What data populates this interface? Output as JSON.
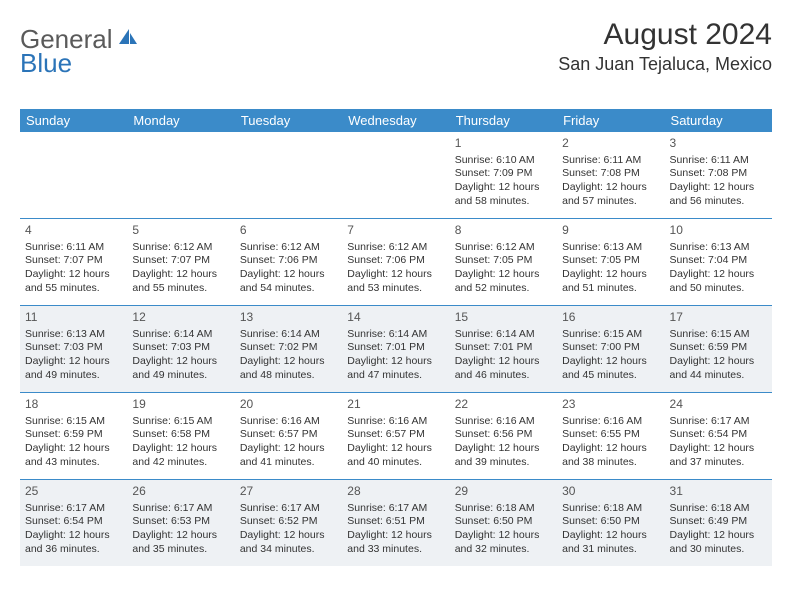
{
  "logo": {
    "text1": "General",
    "text2": "Blue"
  },
  "title": "August 2024",
  "location": "San Juan Tejaluca, Mexico",
  "colors": {
    "header_bg": "#3b8bc9",
    "header_text": "#ffffff",
    "border": "#3b8bc9",
    "shaded_bg": "#eef1f4",
    "text": "#333333",
    "logo_gray": "#5a5a5a",
    "logo_blue": "#2b74b8"
  },
  "day_headers": [
    "Sunday",
    "Monday",
    "Tuesday",
    "Wednesday",
    "Thursday",
    "Friday",
    "Saturday"
  ],
  "weeks": [
    [
      {
        "n": "",
        "sr": "",
        "ss": "",
        "dl": ""
      },
      {
        "n": "",
        "sr": "",
        "ss": "",
        "dl": ""
      },
      {
        "n": "",
        "sr": "",
        "ss": "",
        "dl": ""
      },
      {
        "n": "",
        "sr": "",
        "ss": "",
        "dl": ""
      },
      {
        "n": "1",
        "sr": "Sunrise: 6:10 AM",
        "ss": "Sunset: 7:09 PM",
        "dl": "Daylight: 12 hours and 58 minutes."
      },
      {
        "n": "2",
        "sr": "Sunrise: 6:11 AM",
        "ss": "Sunset: 7:08 PM",
        "dl": "Daylight: 12 hours and 57 minutes."
      },
      {
        "n": "3",
        "sr": "Sunrise: 6:11 AM",
        "ss": "Sunset: 7:08 PM",
        "dl": "Daylight: 12 hours and 56 minutes."
      }
    ],
    [
      {
        "n": "4",
        "sr": "Sunrise: 6:11 AM",
        "ss": "Sunset: 7:07 PM",
        "dl": "Daylight: 12 hours and 55 minutes."
      },
      {
        "n": "5",
        "sr": "Sunrise: 6:12 AM",
        "ss": "Sunset: 7:07 PM",
        "dl": "Daylight: 12 hours and 55 minutes."
      },
      {
        "n": "6",
        "sr": "Sunrise: 6:12 AM",
        "ss": "Sunset: 7:06 PM",
        "dl": "Daylight: 12 hours and 54 minutes."
      },
      {
        "n": "7",
        "sr": "Sunrise: 6:12 AM",
        "ss": "Sunset: 7:06 PM",
        "dl": "Daylight: 12 hours and 53 minutes."
      },
      {
        "n": "8",
        "sr": "Sunrise: 6:12 AM",
        "ss": "Sunset: 7:05 PM",
        "dl": "Daylight: 12 hours and 52 minutes."
      },
      {
        "n": "9",
        "sr": "Sunrise: 6:13 AM",
        "ss": "Sunset: 7:05 PM",
        "dl": "Daylight: 12 hours and 51 minutes."
      },
      {
        "n": "10",
        "sr": "Sunrise: 6:13 AM",
        "ss": "Sunset: 7:04 PM",
        "dl": "Daylight: 12 hours and 50 minutes."
      }
    ],
    [
      {
        "n": "11",
        "sr": "Sunrise: 6:13 AM",
        "ss": "Sunset: 7:03 PM",
        "dl": "Daylight: 12 hours and 49 minutes."
      },
      {
        "n": "12",
        "sr": "Sunrise: 6:14 AM",
        "ss": "Sunset: 7:03 PM",
        "dl": "Daylight: 12 hours and 49 minutes."
      },
      {
        "n": "13",
        "sr": "Sunrise: 6:14 AM",
        "ss": "Sunset: 7:02 PM",
        "dl": "Daylight: 12 hours and 48 minutes."
      },
      {
        "n": "14",
        "sr": "Sunrise: 6:14 AM",
        "ss": "Sunset: 7:01 PM",
        "dl": "Daylight: 12 hours and 47 minutes."
      },
      {
        "n": "15",
        "sr": "Sunrise: 6:14 AM",
        "ss": "Sunset: 7:01 PM",
        "dl": "Daylight: 12 hours and 46 minutes."
      },
      {
        "n": "16",
        "sr": "Sunrise: 6:15 AM",
        "ss": "Sunset: 7:00 PM",
        "dl": "Daylight: 12 hours and 45 minutes."
      },
      {
        "n": "17",
        "sr": "Sunrise: 6:15 AM",
        "ss": "Sunset: 6:59 PM",
        "dl": "Daylight: 12 hours and 44 minutes."
      }
    ],
    [
      {
        "n": "18",
        "sr": "Sunrise: 6:15 AM",
        "ss": "Sunset: 6:59 PM",
        "dl": "Daylight: 12 hours and 43 minutes."
      },
      {
        "n": "19",
        "sr": "Sunrise: 6:15 AM",
        "ss": "Sunset: 6:58 PM",
        "dl": "Daylight: 12 hours and 42 minutes."
      },
      {
        "n": "20",
        "sr": "Sunrise: 6:16 AM",
        "ss": "Sunset: 6:57 PM",
        "dl": "Daylight: 12 hours and 41 minutes."
      },
      {
        "n": "21",
        "sr": "Sunrise: 6:16 AM",
        "ss": "Sunset: 6:57 PM",
        "dl": "Daylight: 12 hours and 40 minutes."
      },
      {
        "n": "22",
        "sr": "Sunrise: 6:16 AM",
        "ss": "Sunset: 6:56 PM",
        "dl": "Daylight: 12 hours and 39 minutes."
      },
      {
        "n": "23",
        "sr": "Sunrise: 6:16 AM",
        "ss": "Sunset: 6:55 PM",
        "dl": "Daylight: 12 hours and 38 minutes."
      },
      {
        "n": "24",
        "sr": "Sunrise: 6:17 AM",
        "ss": "Sunset: 6:54 PM",
        "dl": "Daylight: 12 hours and 37 minutes."
      }
    ],
    [
      {
        "n": "25",
        "sr": "Sunrise: 6:17 AM",
        "ss": "Sunset: 6:54 PM",
        "dl": "Daylight: 12 hours and 36 minutes."
      },
      {
        "n": "26",
        "sr": "Sunrise: 6:17 AM",
        "ss": "Sunset: 6:53 PM",
        "dl": "Daylight: 12 hours and 35 minutes."
      },
      {
        "n": "27",
        "sr": "Sunrise: 6:17 AM",
        "ss": "Sunset: 6:52 PM",
        "dl": "Daylight: 12 hours and 34 minutes."
      },
      {
        "n": "28",
        "sr": "Sunrise: 6:17 AM",
        "ss": "Sunset: 6:51 PM",
        "dl": "Daylight: 12 hours and 33 minutes."
      },
      {
        "n": "29",
        "sr": "Sunrise: 6:18 AM",
        "ss": "Sunset: 6:50 PM",
        "dl": "Daylight: 12 hours and 32 minutes."
      },
      {
        "n": "30",
        "sr": "Sunrise: 6:18 AM",
        "ss": "Sunset: 6:50 PM",
        "dl": "Daylight: 12 hours and 31 minutes."
      },
      {
        "n": "31",
        "sr": "Sunrise: 6:18 AM",
        "ss": "Sunset: 6:49 PM",
        "dl": "Daylight: 12 hours and 30 minutes."
      }
    ]
  ],
  "shaded_weeks": [
    2,
    4
  ]
}
